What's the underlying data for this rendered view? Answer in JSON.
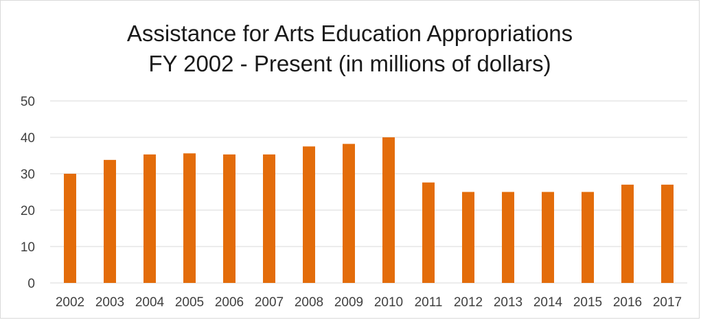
{
  "chart_data": {
    "type": "bar",
    "title_line1": "Assistance for Arts Education Appropriations",
    "title_line2": "FY 2002 - Present (in millions of dollars)",
    "xlabel": "",
    "ylabel": "",
    "categories": [
      "2002",
      "2003",
      "2004",
      "2005",
      "2006",
      "2007",
      "2008",
      "2009",
      "2010",
      "2011",
      "2012",
      "2013",
      "2014",
      "2015",
      "2016",
      "2017"
    ],
    "values": [
      30,
      33.8,
      35.3,
      35.6,
      35.3,
      35.3,
      37.5,
      38.2,
      40,
      27.6,
      25,
      25,
      25,
      25,
      27,
      27
    ],
    "ylim": [
      0,
      50
    ],
    "yticks": [
      0,
      10,
      20,
      30,
      40,
      50
    ],
    "grid": true,
    "legend": "none",
    "bar_color": "#E36C0A"
  }
}
